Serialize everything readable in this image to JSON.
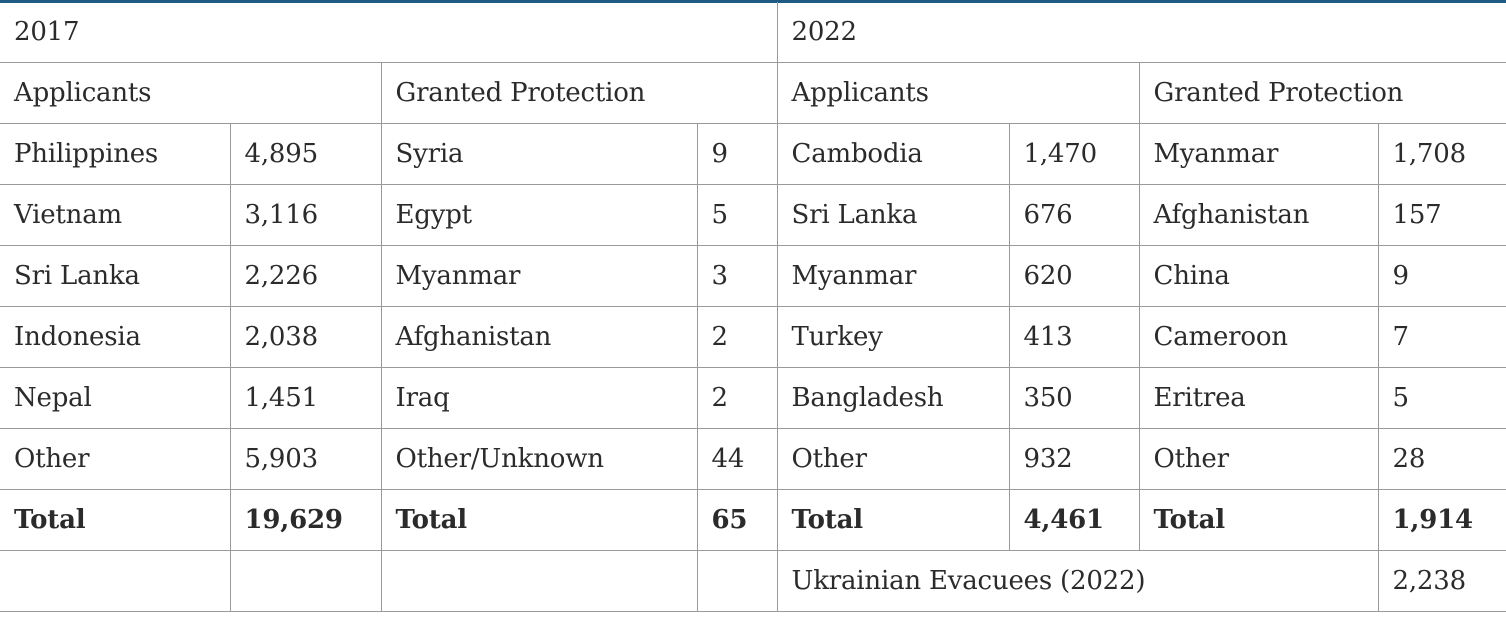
{
  "colors": {
    "accent": "#1e5b82",
    "border": "#9a9a9a",
    "text": "#2b2b2b"
  },
  "year_2017": {
    "label": "2017",
    "applicants_header": "Applicants",
    "granted_header": "Granted Protection",
    "applicants": [
      {
        "country": "Philippines",
        "count": "4,895"
      },
      {
        "country": "Vietnam",
        "count": "3,116"
      },
      {
        "country": "Sri Lanka",
        "count": "2,226"
      },
      {
        "country": "Indonesia",
        "count": "2,038"
      },
      {
        "country": "Nepal",
        "count": "1,451"
      },
      {
        "country": "Other",
        "count": "5,903"
      }
    ],
    "applicants_total": {
      "label": "Total",
      "count": "19,629"
    },
    "granted": [
      {
        "country": "Syria",
        "count": "9"
      },
      {
        "country": "Egypt",
        "count": "5"
      },
      {
        "country": "Myanmar",
        "count": "3"
      },
      {
        "country": "Afghanistan",
        "count": "2"
      },
      {
        "country": "Iraq",
        "count": "2"
      },
      {
        "country": "Other/Unknown",
        "count": "44"
      }
    ],
    "granted_total": {
      "label": "Total",
      "count": "65"
    }
  },
  "year_2022": {
    "label": "2022",
    "applicants_header": "Applicants",
    "granted_header": "Granted Protection",
    "applicants": [
      {
        "country": "Cambodia",
        "count": "1,470"
      },
      {
        "country": "Sri Lanka",
        "count": "676"
      },
      {
        "country": "Myanmar",
        "count": "620"
      },
      {
        "country": "Turkey",
        "count": "413"
      },
      {
        "country": "Bangladesh",
        "count": "350"
      },
      {
        "country": "Other",
        "count": "932"
      }
    ],
    "applicants_total": {
      "label": "Total",
      "count": "4,461"
    },
    "granted": [
      {
        "country": "Myanmar",
        "count": "1,708"
      },
      {
        "country": "Afghanistan",
        "count": "157"
      },
      {
        "country": "China",
        "count": "9"
      },
      {
        "country": "Cameroon",
        "count": "7"
      },
      {
        "country": "Eritrea",
        "count": "5"
      },
      {
        "country": "Other",
        "count": "28"
      }
    ],
    "granted_total": {
      "label": "Total",
      "count": "1,914"
    },
    "evacuees": {
      "label": "Ukrainian Evacuees (2022)",
      "count": "2,238"
    }
  }
}
